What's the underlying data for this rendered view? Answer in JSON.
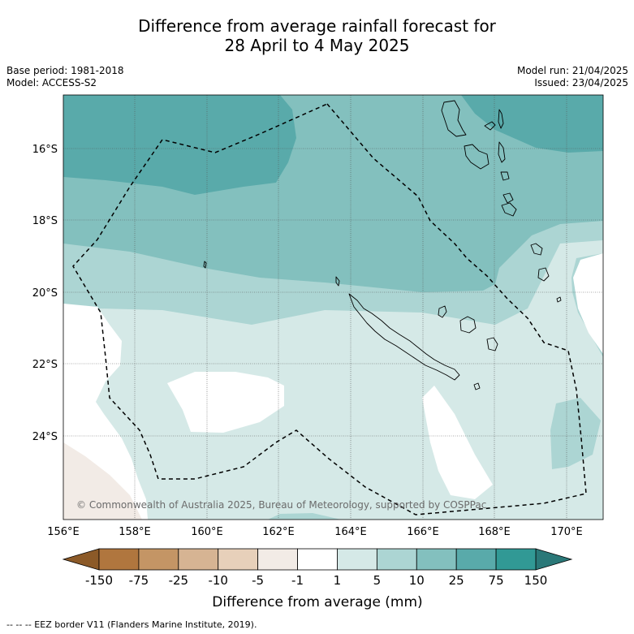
{
  "title_line1": "Difference from average rainfall forecast for",
  "title_line2": "28 April to 4 May 2025",
  "base_period": "Base period: 1981-2018",
  "model": "Model: ACCESS-S2",
  "model_run": "Model run: 21/04/2025",
  "issued": "Issued: 23/04/2025",
  "copyright": "© Commonwealth of Australia 2025, Bureau of Meteorology, supported by COSPPac",
  "lon_labels": [
    "156°E",
    "158°E",
    "160°E",
    "162°E",
    "164°E",
    "166°E",
    "168°E",
    "170°E"
  ],
  "lat_labels": [
    "16°S",
    "18°S",
    "20°S",
    "22°S",
    "24°S"
  ],
  "colorbar": {
    "label": "Difference from average (mm)",
    "ticks": [
      "-150",
      "-75",
      "-25",
      "-10",
      "-5",
      "-1",
      "1",
      "5",
      "10",
      "25",
      "75",
      "150"
    ],
    "colors": {
      "under": "#8c5a28",
      "bins": [
        "#b0763e",
        "#c49565",
        "#d6b493",
        "#e7d0ba",
        "#f2ebe6",
        "#ffffff",
        "#d5e9e7",
        "#acd5d3",
        "#83c0be",
        "#59aaaa",
        "#319995"
      ],
      "over": "#2a7878"
    }
  },
  "footer": "--  --  -- EEZ border V11 (Flanders Marine Institute, 2019).",
  "colors": {
    "coast": "#000000",
    "eez": "#000000",
    "grid": "#555555"
  }
}
